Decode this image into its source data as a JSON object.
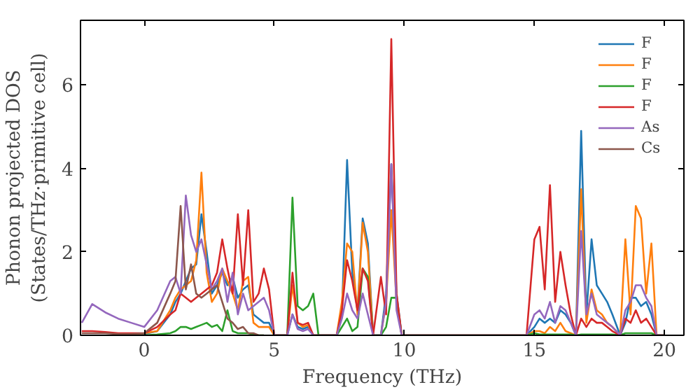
{
  "chart_data": {
    "type": "line",
    "xlabel": "Frequency (THz)",
    "ylabel": "Phonon projected DOS\n(States/THz·primitive cell)",
    "x": [
      -2.4,
      -2,
      -1.5,
      -1,
      -0.5,
      0,
      0.5,
      1,
      1.2,
      1.4,
      1.6,
      1.8,
      2,
      2.2,
      2.4,
      2.6,
      2.8,
      3,
      3.2,
      3.4,
      3.6,
      3.8,
      4,
      4.2,
      4.4,
      4.6,
      4.8,
      5,
      5.5,
      5.7,
      5.9,
      6.1,
      6.3,
      6.5,
      6.7,
      7.4,
      7.6,
      7.8,
      8,
      8.2,
      8.4,
      8.6,
      8.8,
      9.1,
      9.3,
      9.5,
      9.7,
      9.9,
      14.7,
      15,
      15.2,
      15.4,
      15.6,
      15.8,
      16,
      16.2,
      16.4,
      16.6,
      16.8,
      17,
      17.2,
      17.4,
      17.6,
      17.8,
      18,
      18.3,
      18.5,
      18.7,
      18.9,
      19.1,
      19.3,
      19.5,
      19.7,
      20
    ],
    "series": [
      {
        "name": "F",
        "color": "#1f77b4",
        "values": [
          null,
          null,
          null,
          null,
          0.03,
          0.03,
          0.1,
          0.5,
          0.8,
          1.0,
          1.3,
          1.6,
          1.7,
          2.9,
          2.0,
          1.0,
          1.2,
          1.5,
          1.2,
          1.4,
          0.9,
          1.1,
          1.2,
          0.5,
          0.4,
          0.3,
          0.3,
          0,
          0,
          0.5,
          0.2,
          0.15,
          0.2,
          0,
          0,
          0,
          0.5,
          4.2,
          1.5,
          0.6,
          2.8,
          2.2,
          0,
          0,
          1.0,
          4.1,
          1.0,
          0,
          0,
          0.2,
          0.4,
          0.3,
          0.4,
          0.3,
          0.6,
          0.5,
          0.3,
          0,
          4.9,
          0.5,
          2.3,
          1.2,
          1.0,
          0.8,
          0.5,
          0,
          0.3,
          0.9,
          0.9,
          0.7,
          0.8,
          0.5,
          0,
          0
        ]
      },
      {
        "name": "F",
        "color": "#ff7f0e",
        "values": [
          null,
          null,
          null,
          null,
          0.03,
          0.05,
          0.1,
          0.6,
          0.9,
          1.1,
          1.2,
          1.3,
          1.8,
          3.9,
          1.5,
          0.8,
          1.0,
          1.6,
          1.3,
          1.0,
          0.6,
          1.3,
          1.4,
          0.3,
          0.2,
          0.2,
          0.2,
          0,
          0,
          1.2,
          0.3,
          0.2,
          0.25,
          0,
          0,
          0,
          0.8,
          2.2,
          2.0,
          0.5,
          2.7,
          2.0,
          0,
          0,
          0.8,
          3.0,
          0.8,
          0,
          0,
          0.1,
          0.1,
          0.05,
          0.2,
          0.1,
          0.3,
          0.1,
          0.05,
          0,
          3.5,
          0.3,
          1.1,
          0.6,
          0.5,
          0.3,
          0.2,
          0,
          2.3,
          0.5,
          3.1,
          2.8,
          1.0,
          2.2,
          0,
          0
        ]
      },
      {
        "name": "F",
        "color": "#2ca02c",
        "values": [
          null,
          null,
          null,
          null,
          0,
          0,
          0.02,
          0.05,
          0.1,
          0.2,
          0.2,
          0.15,
          0.2,
          0.25,
          0.3,
          0.2,
          0.25,
          0.1,
          0.6,
          0.1,
          0.05,
          0.05,
          0.05,
          0.02,
          0,
          0,
          null,
          0,
          0,
          3.3,
          0.7,
          0.6,
          0.7,
          1.0,
          0,
          0,
          0.2,
          0.4,
          0.1,
          0.2,
          1.6,
          1.4,
          0,
          0,
          0.2,
          0.9,
          0.9,
          0,
          0,
          0.05,
          0.02,
          0.02,
          0.02,
          0.02,
          0.02,
          0.02,
          0.02,
          0,
          0.02,
          0.02,
          0.02,
          0.02,
          0.02,
          0.02,
          0.02,
          0,
          0.05,
          0.05,
          0.05,
          0.05,
          0.05,
          0.05,
          0,
          0
        ]
      },
      {
        "name": "F",
        "color": "#d62728",
        "values": [
          0.1,
          0.1,
          0.08,
          0.05,
          0.05,
          0.05,
          0.2,
          0.5,
          0.6,
          1.0,
          0.9,
          0.8,
          0.9,
          1.0,
          1.1,
          1.2,
          1.5,
          2.3,
          1.6,
          1.0,
          2.9,
          1.2,
          3.0,
          0.8,
          1.0,
          1.6,
          1.1,
          0,
          0,
          1.5,
          0.3,
          0.25,
          0.3,
          0,
          0,
          0,
          0.6,
          1.8,
          1.3,
          0.6,
          1.6,
          1.3,
          0,
          1.4,
          0.5,
          7.1,
          1.0,
          0,
          0,
          2.3,
          2.6,
          1.1,
          3.6,
          0.8,
          2.0,
          1.2,
          0.5,
          0,
          0.4,
          0.2,
          0.4,
          0.3,
          0.3,
          0.2,
          0.1,
          0,
          0.4,
          0.3,
          0.6,
          0.3,
          0.4,
          0.2,
          0,
          0
        ]
      },
      {
        "name": "As",
        "color": "#9467bd",
        "values": [
          0.3,
          0.75,
          0.55,
          0.4,
          0.3,
          0.2,
          0.6,
          1.3,
          1.4,
          1.0,
          3.35,
          2.4,
          2.0,
          2.3,
          1.7,
          1.1,
          1.3,
          1.6,
          0.8,
          1.5,
          0.5,
          1.0,
          0.6,
          0.7,
          0.8,
          0.9,
          0.6,
          0,
          0,
          0.5,
          0.15,
          0.1,
          0.15,
          0,
          0,
          0,
          0.4,
          1.0,
          0.6,
          0.4,
          1.0,
          0.5,
          0,
          0,
          0.8,
          4.1,
          0.6,
          0,
          0,
          0.5,
          0.6,
          0.4,
          0.8,
          0.3,
          0.7,
          0.6,
          0.3,
          0,
          2.5,
          0.5,
          1.0,
          0.5,
          0.4,
          0.3,
          0.2,
          0,
          0.6,
          0.8,
          1.2,
          1.2,
          0.9,
          0.7,
          0,
          0
        ]
      },
      {
        "name": "Cs",
        "color": "#8c564b",
        "values": [
          0.05,
          0.05,
          0.05,
          0.03,
          0.03,
          0.05,
          0.3,
          1.0,
          1.3,
          3.1,
          1.1,
          1.7,
          1.0,
          0.9,
          1.0,
          1.1,
          1.2,
          0.8,
          0.4,
          0.3,
          0.15,
          0.2,
          0.05,
          0.05,
          0,
          0,
          null,
          null,
          null,
          null,
          null,
          null,
          null,
          null,
          null,
          null,
          null,
          null,
          null,
          null,
          null,
          null,
          null,
          null,
          null,
          null,
          null,
          null,
          null,
          null,
          null,
          null,
          null,
          null,
          null,
          null,
          null,
          null,
          null,
          null,
          null,
          null,
          null,
          null,
          null,
          null,
          null,
          null,
          null,
          null,
          null,
          null,
          null,
          null
        ]
      }
    ],
    "xlim": [
      -2.45,
      20.75
    ],
    "ylim": [
      0,
      7.55
    ],
    "xticks": [
      0,
      5,
      10,
      15,
      20
    ],
    "yticks": [
      0,
      2,
      4,
      6
    ],
    "legend": "top right",
    "grid": false
  }
}
